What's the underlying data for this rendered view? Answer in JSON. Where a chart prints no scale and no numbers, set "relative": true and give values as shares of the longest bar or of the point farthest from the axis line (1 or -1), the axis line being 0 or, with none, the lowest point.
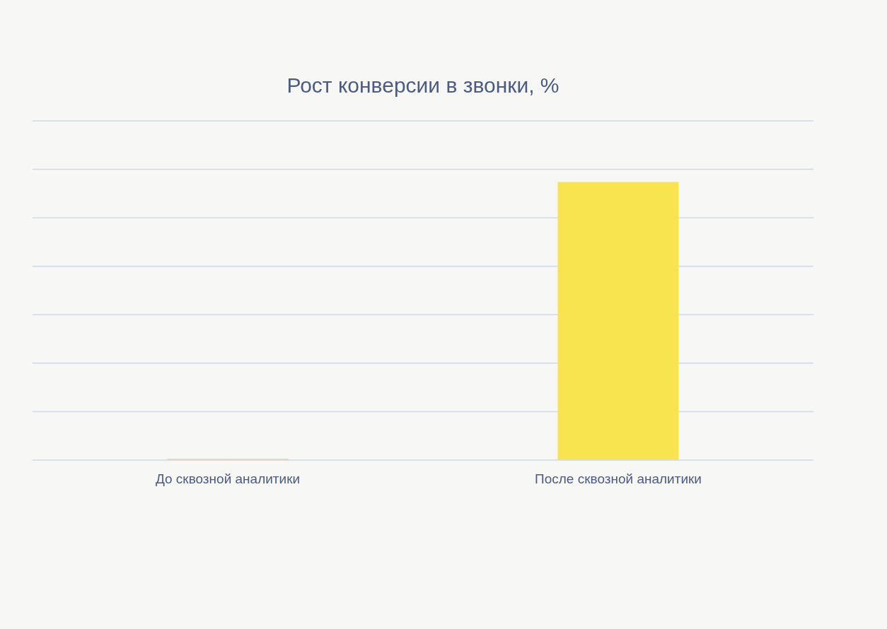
{
  "chart_data": {
    "type": "bar",
    "title": "Рост конверсии в звонки, %",
    "relative": true,
    "categories": [
      "До сквозной аналитики",
      "После сквозной аналитики"
    ],
    "values": [
      0.005,
      1
    ],
    "color": "#f7e44f",
    "grid": true
  }
}
